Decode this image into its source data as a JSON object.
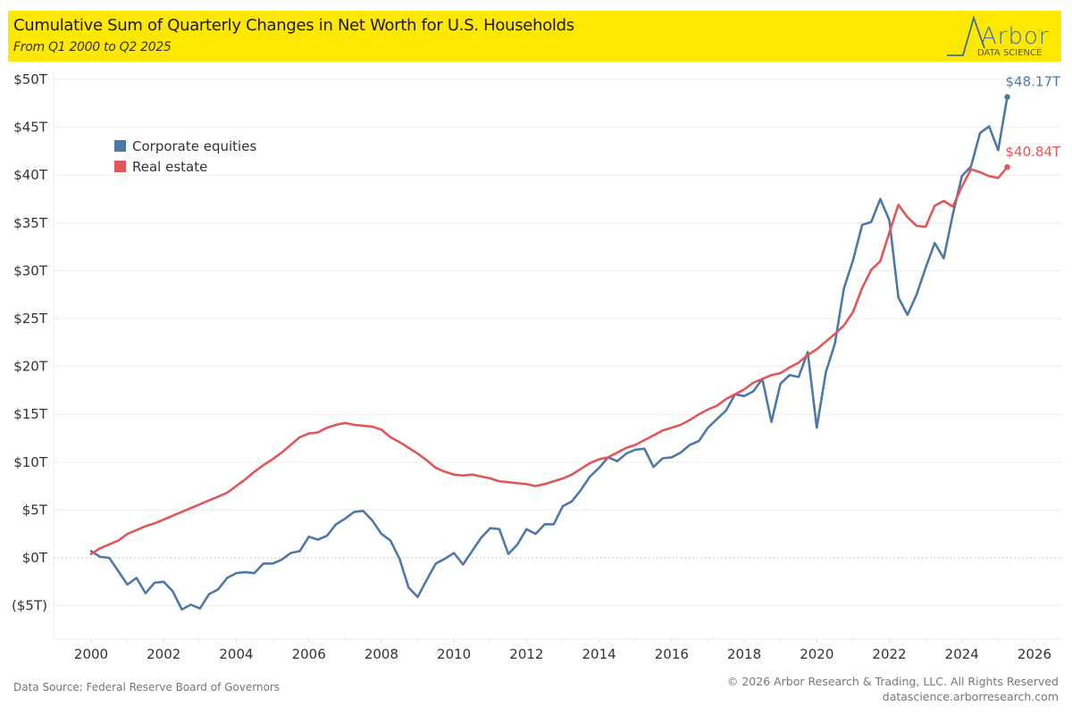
{
  "header": {
    "title": "Cumulative Sum of Quarterly Changes in Net Worth for U.S. Households",
    "subtitle": "From Q1 2000 to Q2 2025",
    "logo_name": "Arbor",
    "logo_sub": "DATA SCIENCE"
  },
  "footer": {
    "source": "Data Source: Federal Reserve Board of Governors",
    "copyright": "© 2026 Arbor Research & Trading, LLC. All Rights Reserved",
    "website": "datascience.arborresearch.com"
  },
  "colors": {
    "header_bg": "#ffe800",
    "equities": "#4e79a7",
    "real_estate": "#e15759",
    "gridline": "#ebebeb"
  },
  "chart_data": {
    "type": "line",
    "title": "Cumulative Sum of Quarterly Changes in Net Worth for U.S. Households",
    "subtitle": "From Q1 2000 to Q2 2025",
    "xlabel": "",
    "ylabel": "",
    "x_start": "Q1 2000",
    "x_end": "Q2 2025",
    "x_unit": "quarter",
    "xlim": [
      2000,
      2026
    ],
    "ylim": [
      -5,
      50
    ],
    "x_ticks": [
      "2000",
      "2002",
      "2004",
      "2006",
      "2008",
      "2010",
      "2012",
      "2014",
      "2016",
      "2018",
      "2020",
      "2022",
      "2024",
      "2026"
    ],
    "y_ticks": [
      {
        "value": 50,
        "label": "$50T"
      },
      {
        "value": 45,
        "label": "$45T"
      },
      {
        "value": 40,
        "label": "$40T"
      },
      {
        "value": 35,
        "label": "$35T"
      },
      {
        "value": 30,
        "label": "$30T"
      },
      {
        "value": 25,
        "label": "$25T"
      },
      {
        "value": 20,
        "label": "$20T"
      },
      {
        "value": 15,
        "label": "$15T"
      },
      {
        "value": 10,
        "label": "$10T"
      },
      {
        "value": 5,
        "label": "$5T"
      },
      {
        "value": 0,
        "label": "$0T"
      },
      {
        "value": -5,
        "label": "($5T)"
      }
    ],
    "grid": true,
    "zero_line": "dotted",
    "legend_position": "top-left",
    "series": [
      {
        "name": "Corporate equities",
        "color": "#4e79a7",
        "end_label": "$48.17T",
        "values": [
          0.7,
          0.1,
          0.0,
          -1.4,
          -2.8,
          -2.1,
          -3.7,
          -2.6,
          -2.5,
          -3.5,
          -5.4,
          -4.9,
          -5.3,
          -3.8,
          -3.3,
          -2.1,
          -1.6,
          -1.5,
          -1.6,
          -0.6,
          -0.6,
          -0.2,
          0.5,
          0.7,
          2.2,
          1.9,
          2.3,
          3.5,
          4.1,
          4.8,
          4.9,
          3.9,
          2.5,
          1.8,
          -0.1,
          -3.1,
          -4.1,
          -2.3,
          -0.6,
          -0.1,
          0.5,
          -0.7,
          0.7,
          2.1,
          3.1,
          3.0,
          0.4,
          1.4,
          3.0,
          2.5,
          3.5,
          3.5,
          5.4,
          5.9,
          7.1,
          8.5,
          9.4,
          10.5,
          10.1,
          10.9,
          11.3,
          11.4,
          9.5,
          10.4,
          10.5,
          11.0,
          11.8,
          12.2,
          13.6,
          14.5,
          15.4,
          17.1,
          16.9,
          17.4,
          18.7,
          14.2,
          18.2,
          19.1,
          18.9,
          21.5,
          13.6,
          19.4,
          22.4,
          28.2,
          31.1,
          34.8,
          35.1,
          37.5,
          35.3,
          27.2,
          25.4,
          27.5,
          30.3,
          32.9,
          31.3,
          35.9,
          39.9,
          40.9,
          44.4,
          45.1,
          42.6,
          48.17
        ]
      },
      {
        "name": "Real estate",
        "color": "#e15759",
        "end_label": "$40.84T",
        "values": [
          0.4,
          1.0,
          1.4,
          1.8,
          2.5,
          2.9,
          3.3,
          3.6,
          4.0,
          4.4,
          4.8,
          5.2,
          5.6,
          6.0,
          6.4,
          6.8,
          7.5,
          8.2,
          9.0,
          9.7,
          10.3,
          11.0,
          11.8,
          12.6,
          13.0,
          13.1,
          13.6,
          13.9,
          14.1,
          13.9,
          13.8,
          13.7,
          13.4,
          12.6,
          12.1,
          11.5,
          10.9,
          10.2,
          9.4,
          9.0,
          8.7,
          8.6,
          8.7,
          8.5,
          8.3,
          8.0,
          7.9,
          7.8,
          7.7,
          7.5,
          7.7,
          8.0,
          8.3,
          8.7,
          9.3,
          9.9,
          10.3,
          10.5,
          11.0,
          11.5,
          11.8,
          12.3,
          12.8,
          13.3,
          13.6,
          13.9,
          14.4,
          15.0,
          15.5,
          15.9,
          16.6,
          17.1,
          17.6,
          18.3,
          18.7,
          19.1,
          19.3,
          19.9,
          20.4,
          21.2,
          21.8,
          22.6,
          23.4,
          24.3,
          25.7,
          28.2,
          30.1,
          31.0,
          34.0,
          36.9,
          35.6,
          34.7,
          34.6,
          36.8,
          37.3,
          36.7,
          38.8,
          40.6,
          40.3,
          39.9,
          39.7,
          40.84
        ]
      }
    ]
  }
}
